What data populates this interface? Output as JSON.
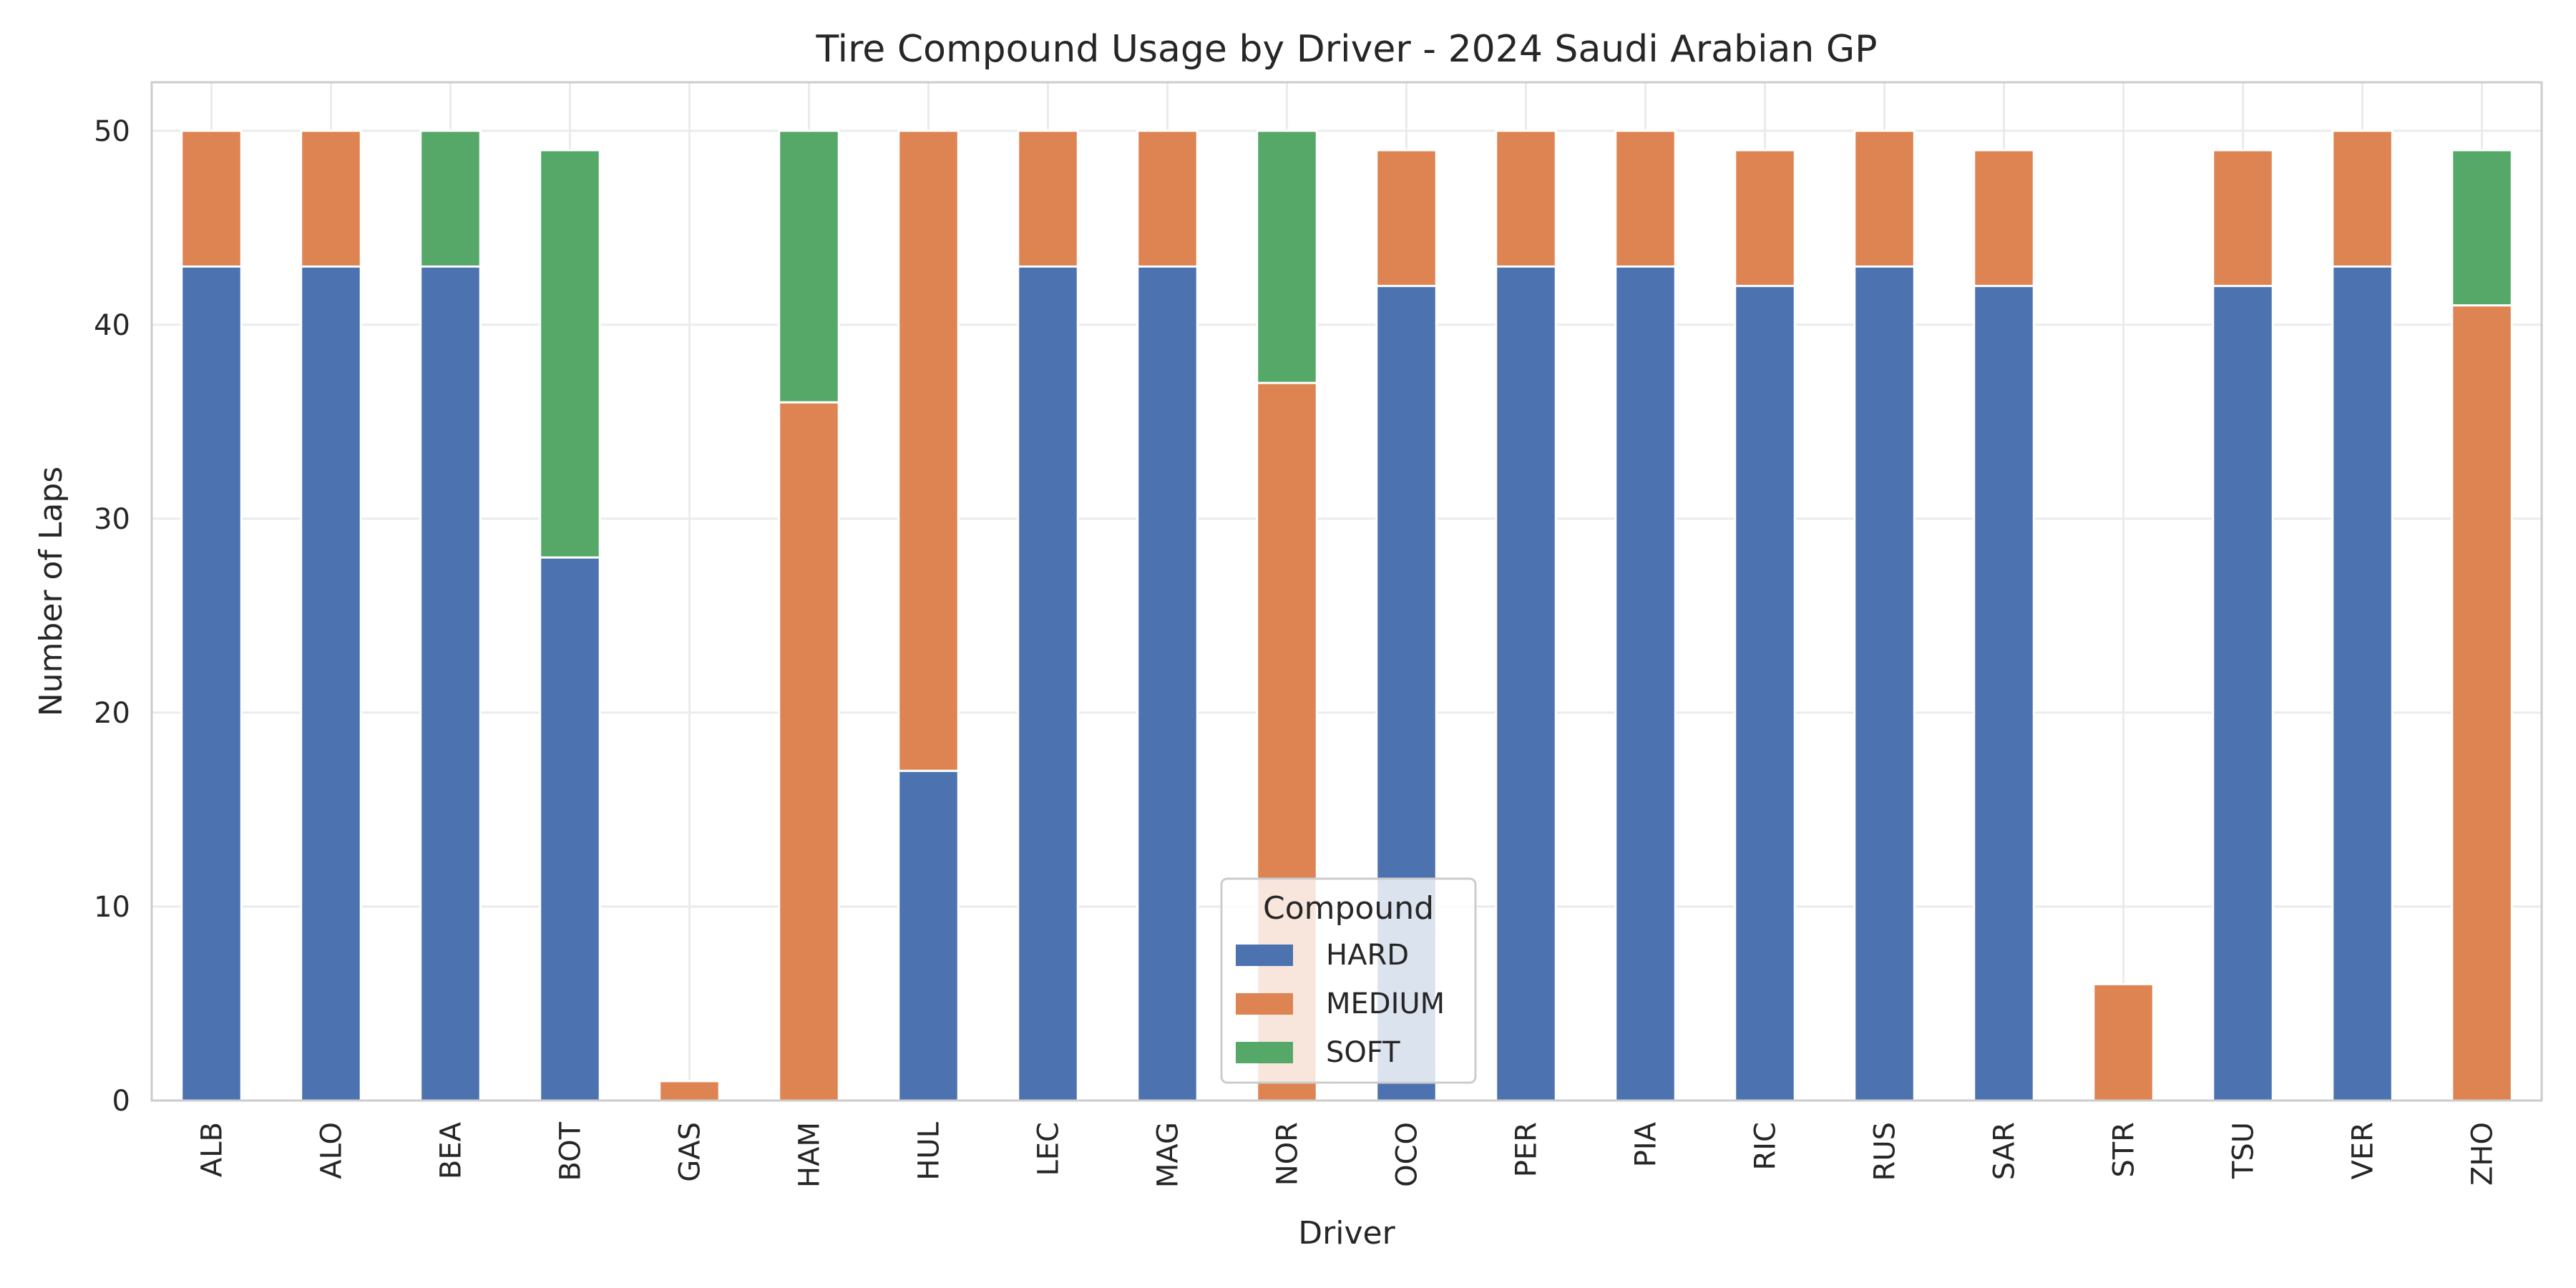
{
  "chart_data": {
    "type": "bar",
    "stacked": true,
    "title": "Tire Compound Usage by Driver - 2024 Saudi Arabian GP",
    "xlabel": "Driver",
    "ylabel": "Number of Laps",
    "ylim": [
      0,
      52.5
    ],
    "yticks": [
      0,
      10,
      20,
      30,
      40,
      50
    ],
    "grid": true,
    "legend_title": "Compound",
    "legend_position": "bottom-center",
    "categories": [
      "ALB",
      "ALO",
      "BEA",
      "BOT",
      "GAS",
      "HAM",
      "HUL",
      "LEC",
      "MAG",
      "NOR",
      "OCO",
      "PER",
      "PIA",
      "RIC",
      "RUS",
      "SAR",
      "STR",
      "TSU",
      "VER",
      "ZHO"
    ],
    "series": [
      {
        "name": "HARD",
        "color": "#4c72b0",
        "values": [
          43,
          43,
          43,
          28,
          0,
          0,
          17,
          43,
          43,
          0,
          42,
          43,
          43,
          42,
          43,
          42,
          0,
          42,
          43,
          0
        ]
      },
      {
        "name": "MEDIUM",
        "color": "#dd8452",
        "values": [
          7,
          7,
          0,
          0,
          1,
          36,
          33,
          7,
          7,
          37,
          7,
          7,
          7,
          7,
          7,
          7,
          6,
          7,
          7,
          41
        ]
      },
      {
        "name": "SOFT",
        "color": "#55a868",
        "values": [
          0,
          0,
          7,
          21,
          0,
          14,
          0,
          0,
          0,
          13,
          0,
          0,
          0,
          0,
          0,
          0,
          0,
          0,
          0,
          8
        ]
      }
    ]
  }
}
